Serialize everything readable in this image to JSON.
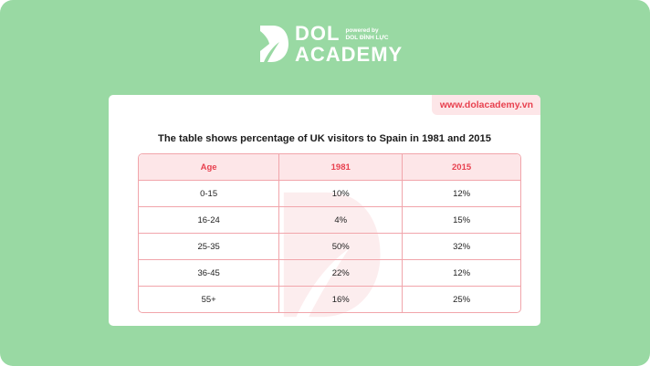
{
  "brand": {
    "name_line1": "DOL",
    "name_line2": "ACADEMY",
    "powered_line1": "powered by",
    "powered_line2": "DOL ĐÌNH LỰC",
    "url": "www.dolacademy.vn"
  },
  "table": {
    "title": "The table shows percentage of UK visitors to Spain in 1981 and 2015",
    "headers": [
      "Age",
      "1981",
      "2015"
    ],
    "rows": [
      [
        "0-15",
        "10%",
        "12%"
      ],
      [
        "16-24",
        "4%",
        "15%"
      ],
      [
        "25-35",
        "50%",
        "32%"
      ],
      [
        "36-45",
        "22%",
        "12%"
      ],
      [
        "55+",
        "16%",
        "25%"
      ]
    ]
  },
  "colors": {
    "background": "#99d9a3",
    "accent": "#e8414f",
    "header_fill": "#fde6e8",
    "border": "#f1a5ab"
  },
  "icons": {
    "logo": "dol-logo-icon",
    "watermark": "dol-watermark-icon"
  }
}
